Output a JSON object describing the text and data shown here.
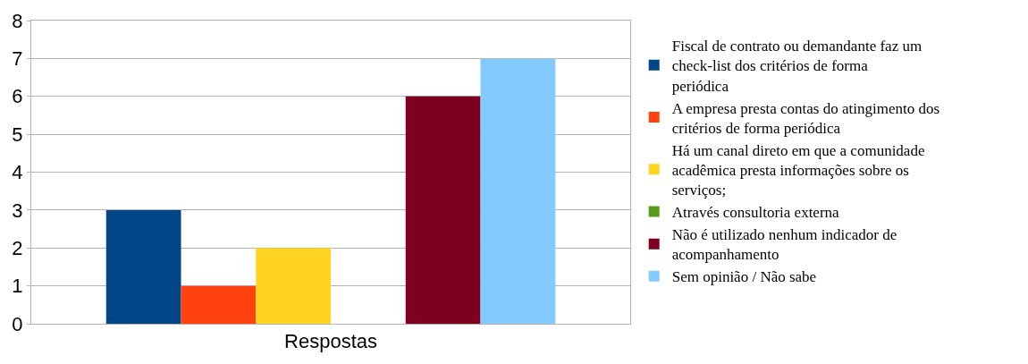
{
  "chart_data": {
    "type": "bar",
    "categories": [
      "Respostas"
    ],
    "series": [
      {
        "name": "Fiscal de contrato ou demandante faz um check-list dos critérios de forma periódica",
        "color": "#004586",
        "values": [
          3
        ]
      },
      {
        "name": "A empresa presta contas do atingimento dos critérios de forma periódica",
        "color": "#ff420e",
        "values": [
          1
        ]
      },
      {
        "name": "Há um canal direto em que a comunidade acadêmica presta informações sobre os serviços;",
        "color": "#ffd320",
        "values": [
          2
        ]
      },
      {
        "name": "Através consultoria externa",
        "color": "#579d1c",
        "values": [
          0
        ]
      },
      {
        "name": "Não é utilizado nenhum indicador de acompanhamento",
        "color": "#7e0021",
        "values": [
          6
        ]
      },
      {
        "name": "Sem opinião / Não sabe",
        "color": "#83caff",
        "values": [
          7
        ]
      }
    ],
    "ylim": [
      0,
      8
    ],
    "yticks": [
      0,
      1,
      2,
      3,
      4,
      5,
      6,
      7,
      8
    ],
    "grid": "y",
    "legend": "right"
  }
}
